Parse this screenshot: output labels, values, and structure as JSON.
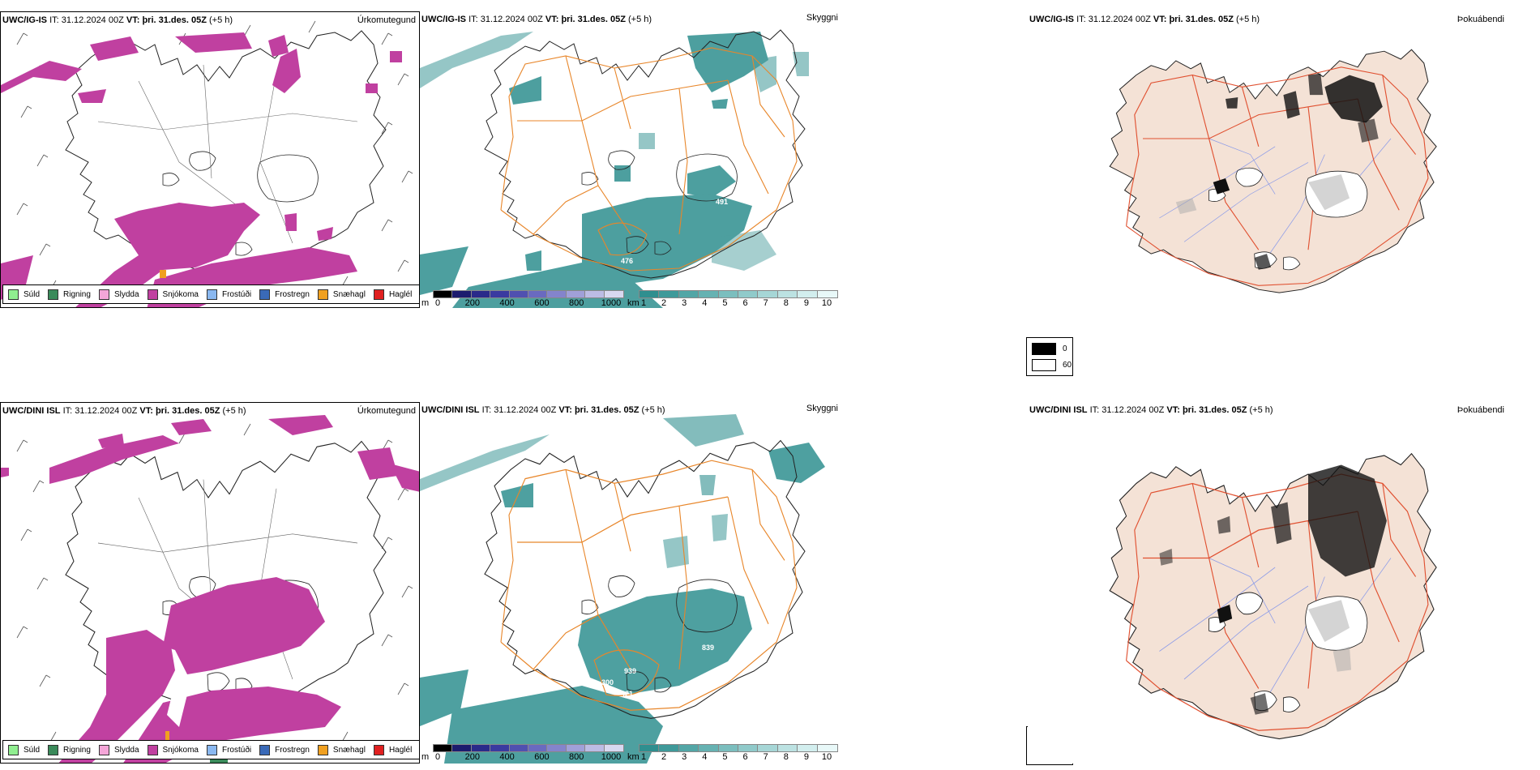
{
  "rows": [
    {
      "model": "UWC/IG-IS",
      "it_label": "IT:",
      "it_value": "31.12.2024 00Z",
      "vt_label": "VT:",
      "vt_value": "þri. 31.des. 05Z",
      "lead": "(+5 h)",
      "titles": {
        "precip": "Úrkomutegund",
        "vis": "Skyggni",
        "fog": "Þokuábendi"
      },
      "vis_labels": [
        "491",
        "476"
      ]
    },
    {
      "model": "UWC/DINI ISL",
      "it_label": "IT:",
      "it_value": "31.12.2024 00Z",
      "vt_label": "VT:",
      "vt_value": "þri. 31.des. 05Z",
      "lead": "(+5 h)",
      "titles": {
        "precip": "Úrkomutegund",
        "vis": "Skyggni",
        "fog": "Þokuábendi"
      },
      "vis_labels": [
        "939",
        "300",
        "421",
        "839"
      ]
    }
  ],
  "precip_legend": [
    {
      "label": "Súld",
      "color": "#90ee90"
    },
    {
      "label": "Rigning",
      "color": "#3a8a5a"
    },
    {
      "label": "Slydda",
      "color": "#f4a6d8"
    },
    {
      "label": "Snjókoma",
      "color": "#c040a0"
    },
    {
      "label": "Frostúði",
      "color": "#8ab8f0"
    },
    {
      "label": "Frostregn",
      "color": "#3a6ab8"
    },
    {
      "label": "Snæhagl",
      "color": "#f0a020"
    },
    {
      "label": "Haglél",
      "color": "#e02020"
    }
  ],
  "height_bar": {
    "unit": "m",
    "ticks": [
      "0",
      "200",
      "400",
      "600",
      "800",
      "1000"
    ],
    "colors": [
      "#000000",
      "#1c1c6e",
      "#2a2a8a",
      "#3a3aa0",
      "#5050b0",
      "#6a6ac0",
      "#8484cc",
      "#a0a0d8",
      "#bcbce4",
      "#d8d8f0"
    ]
  },
  "km_bar": {
    "unit": "km",
    "ticks": [
      "1",
      "2",
      "3",
      "4",
      "5",
      "6",
      "7",
      "8",
      "9",
      "10"
    ],
    "colors": [
      "#2f8f8f",
      "#3f9a9a",
      "#52a6a6",
      "#66b2b2",
      "#7bbebe",
      "#90caca",
      "#a6d6d6",
      "#bce2e2",
      "#d2eeee",
      "#e8f8f8"
    ]
  },
  "fog_legend": [
    {
      "label": "0",
      "color": "#000000"
    },
    {
      "label": "60",
      "color": "#ffffff"
    }
  ],
  "colors": {
    "snow": "#c040a0",
    "visibility": "#2f8f8f",
    "roads": "#e8862a",
    "fog_land": "#f4e2d6",
    "fog_roads": "#e05030",
    "rivers": "#8a9ae8"
  }
}
